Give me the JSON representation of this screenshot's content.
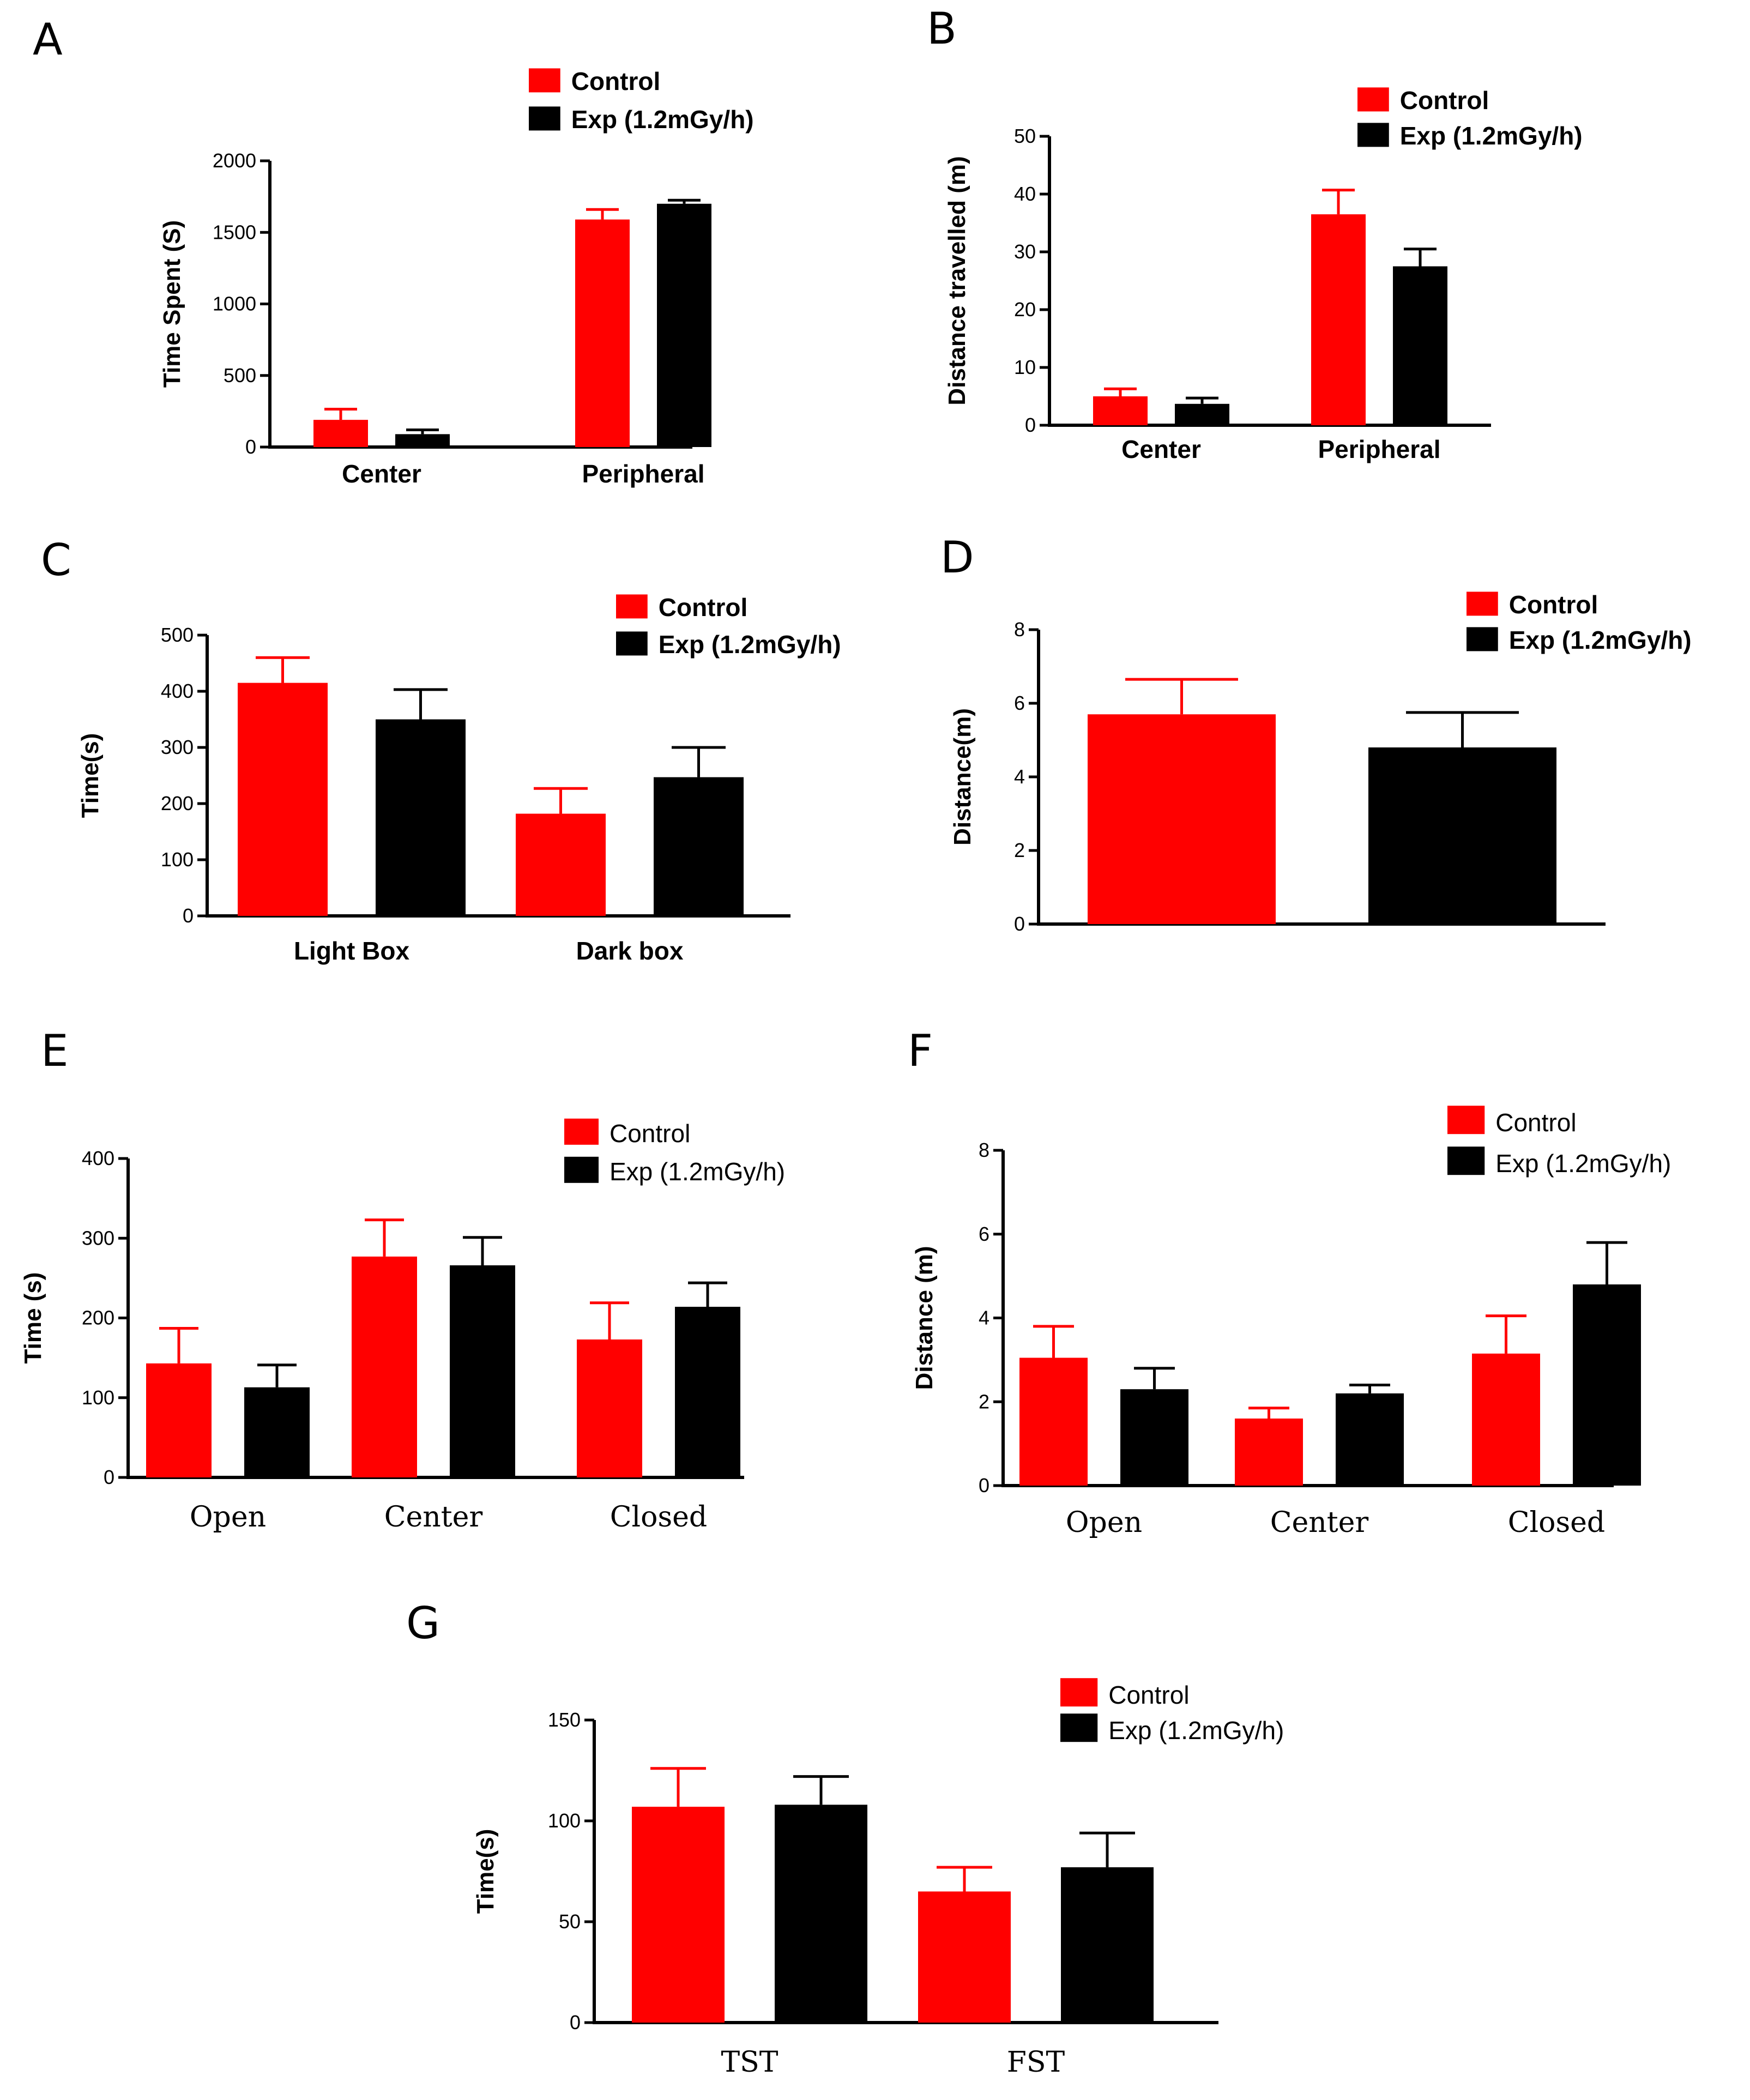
{
  "figure": {
    "colors": {
      "control": "#ff0000",
      "exp": "#000000"
    },
    "panels": [
      {
        "letter": "A",
        "legend": [
          "Control",
          "Exp (1.2mGy/h)"
        ]
      },
      {
        "letter": "B",
        "legend": [
          "Control",
          "Exp (1.2mGy/h)"
        ]
      },
      {
        "letter": "C",
        "legend": [
          "Control",
          "Exp (1.2mGy/h)"
        ]
      },
      {
        "letter": "D",
        "legend": [
          "Control",
          "Exp (1.2mGy/h)"
        ]
      },
      {
        "letter": "E",
        "legend": [
          "Control",
          "Exp (1.2mGy/h)"
        ]
      },
      {
        "letter": "F",
        "legend": [
          "Control",
          "Exp (1.2mGy/h)"
        ]
      },
      {
        "letter": "G",
        "legend": [
          "Control",
          "Exp (1.2mGy/h)"
        ]
      }
    ]
  },
  "chart_data": [
    {
      "panel": "A",
      "type": "bar",
      "categories": [
        "Center",
        "Peripheral"
      ],
      "ylabel": "Time Spent (S)",
      "xlabel": "",
      "ylim": [
        0,
        2000
      ],
      "yticks": [
        0,
        500,
        1000,
        1500,
        2000
      ],
      "series": [
        {
          "name": "Control",
          "color": "#ff0000",
          "values": [
            190,
            1590
          ],
          "errors": [
            75,
            70
          ]
        },
        {
          "name": "Exp (1.2mGy/h)",
          "color": "#000000",
          "values": [
            90,
            1700
          ],
          "errors": [
            30,
            25
          ]
        }
      ],
      "legend_position": "top-right",
      "grid": false
    },
    {
      "panel": "B",
      "type": "bar",
      "categories": [
        "Center",
        "Peripheral"
      ],
      "ylabel": "Distance travelled (m)",
      "xlabel": "",
      "ylim": [
        0,
        50
      ],
      "yticks": [
        0,
        10,
        20,
        30,
        40,
        50
      ],
      "series": [
        {
          "name": "Control",
          "color": "#ff0000",
          "values": [
            5.0,
            36.5
          ],
          "errors": [
            1.3,
            4.2
          ]
        },
        {
          "name": "Exp (1.2mGy/h)",
          "color": "#000000",
          "values": [
            3.7,
            27.5
          ],
          "errors": [
            1.0,
            3.0
          ]
        }
      ],
      "legend_position": "top-right",
      "grid": false
    },
    {
      "panel": "C",
      "type": "bar",
      "categories": [
        "Light Box",
        "Dark box"
      ],
      "ylabel": "Time(s)",
      "xlabel": "",
      "ylim": [
        0,
        500
      ],
      "yticks": [
        0,
        100,
        200,
        300,
        400,
        500
      ],
      "series": [
        {
          "name": "Control",
          "color": "#ff0000",
          "values": [
            415,
            182
          ],
          "errors": [
            45,
            45
          ]
        },
        {
          "name": "Exp (1.2mGy/h)",
          "color": "#000000",
          "values": [
            350,
            247
          ],
          "errors": [
            53,
            53
          ]
        }
      ],
      "legend_position": "top-right",
      "grid": false
    },
    {
      "panel": "D",
      "type": "bar",
      "categories": [
        ""
      ],
      "ylabel": "Distance(m)",
      "xlabel": "",
      "ylim": [
        0,
        8
      ],
      "yticks": [
        0,
        2,
        4,
        6,
        8
      ],
      "series": [
        {
          "name": "Control",
          "color": "#ff0000",
          "values": [
            5.7
          ],
          "errors": [
            0.95
          ]
        },
        {
          "name": "Exp (1.2mGy/h)",
          "color": "#000000",
          "values": [
            4.8
          ],
          "errors": [
            0.95
          ]
        }
      ],
      "legend_position": "top-right",
      "grid": false
    },
    {
      "panel": "E",
      "type": "bar",
      "categories": [
        "Open",
        "Center",
        "Closed"
      ],
      "ylabel": "Time (s)",
      "xlabel": "",
      "ylim": [
        0,
        400
      ],
      "yticks": [
        0,
        100,
        200,
        300,
        400
      ],
      "series": [
        {
          "name": "Control",
          "color": "#ff0000",
          "values": [
            143,
            277,
            173
          ],
          "errors": [
            44,
            46,
            46
          ]
        },
        {
          "name": "Exp (1.2mGy/h)",
          "color": "#000000",
          "values": [
            113,
            266,
            214
          ],
          "errors": [
            28,
            35,
            30
          ]
        }
      ],
      "legend_position": "top-right",
      "grid": false
    },
    {
      "panel": "F",
      "type": "bar",
      "categories": [
        "Open",
        "Center",
        "Closed"
      ],
      "ylabel": "Distance (m)",
      "xlabel": "",
      "ylim": [
        0,
        8
      ],
      "yticks": [
        0,
        2,
        4,
        6,
        8
      ],
      "series": [
        {
          "name": "Control",
          "color": "#ff0000",
          "values": [
            3.05,
            1.6,
            3.15
          ],
          "errors": [
            0.75,
            0.25,
            0.9
          ]
        },
        {
          "name": "Exp (1.2mGy/h)",
          "color": "#000000",
          "values": [
            2.3,
            2.2,
            4.8
          ],
          "errors": [
            0.5,
            0.2,
            1.0
          ]
        }
      ],
      "legend_position": "top-right",
      "grid": false
    },
    {
      "panel": "G",
      "type": "bar",
      "categories": [
        "TST",
        "FST"
      ],
      "ylabel": "Time(s)",
      "xlabel": "",
      "ylim": [
        0,
        150
      ],
      "yticks": [
        0,
        50,
        100,
        150
      ],
      "series": [
        {
          "name": "Control",
          "color": "#ff0000",
          "values": [
            107,
            65
          ],
          "errors": [
            19,
            12
          ]
        },
        {
          "name": "Exp (1.2mGy/h)",
          "color": "#000000",
          "values": [
            108,
            77
          ],
          "errors": [
            14,
            17
          ]
        }
      ],
      "legend_position": "top-right",
      "grid": false
    }
  ]
}
